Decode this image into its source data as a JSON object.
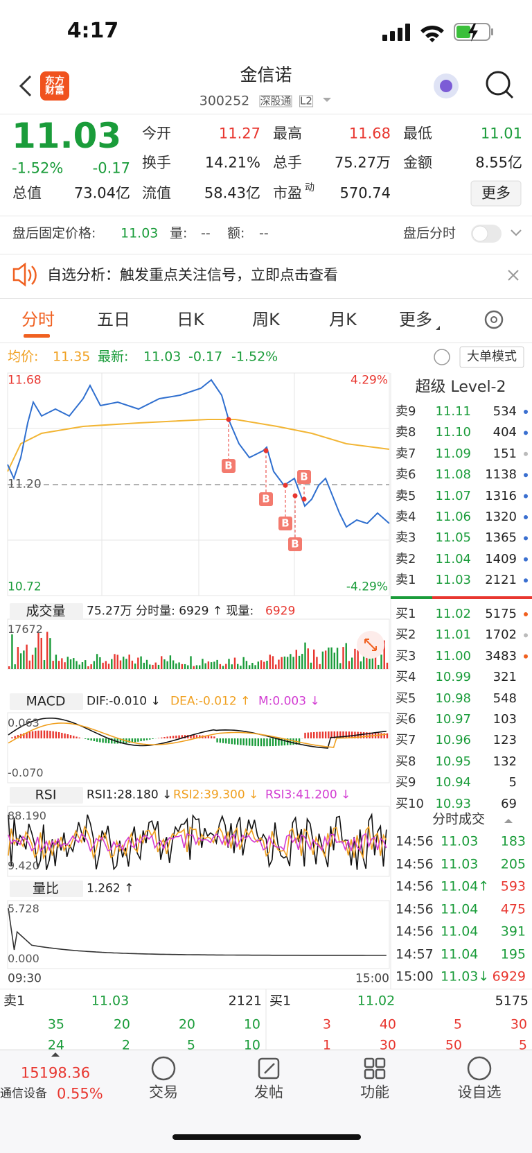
{
  "status": {
    "time": "4:17"
  },
  "header": {
    "logo": "东方财富",
    "title": "金信诺",
    "code": "300252",
    "tags": [
      "深股通",
      "L2"
    ]
  },
  "quote": {
    "price": "11.03",
    "pct": "-1.52%",
    "chg": "-0.17",
    "fields": [
      {
        "label": "今开",
        "value": "11.27"
      },
      {
        "label": "最高",
        "value": "11.68"
      },
      {
        "label": "最低",
        "value": "11.01"
      },
      {
        "label": "换手",
        "value": "14.21%"
      },
      {
        "label": "总手",
        "value": "75.27万"
      },
      {
        "label": "金额",
        "value": "8.55亿"
      },
      {
        "label": "总值",
        "value": "73.04亿"
      },
      {
        "label": "流值",
        "value": "58.43亿"
      },
      {
        "label": "市盈",
        "sup": "动",
        "value": "570.74"
      }
    ],
    "more": "更多"
  },
  "afterhours": {
    "label": "盘后固定价格:",
    "price": "11.03",
    "vol_label": "量:",
    "vol": "--",
    "amt_label": "额:",
    "amt": "--",
    "toggle": "盘后分时"
  },
  "notice": "自选分析：触发重点关注信号，立即点击查看",
  "tabs": [
    "分时",
    "五日",
    "日K",
    "周K",
    "月K",
    "更多"
  ],
  "infobar": {
    "avg_label": "均价:",
    "avg": "11.35",
    "latest_label": "最新:",
    "latest": "11.03",
    "chg": "-0.17",
    "pct": "-1.52%",
    "mode": "大单模式"
  },
  "price_chart": {
    "high": "11.68",
    "high_pct": "4.29%",
    "mid": "11.20",
    "low": "10.72",
    "low_pct": "-4.29%",
    "markers": [
      "B",
      "B",
      "B",
      "B",
      "B"
    ]
  },
  "volume": {
    "title": "成交量",
    "info": "75.27万 分时量: 6929 ↑ 现量:",
    "now": "6929",
    "max": "17672"
  },
  "macd": {
    "title": "MACD",
    "dif": "DIF:-0.010 ↓",
    "dea": "DEA:-0.012 ↑",
    "m": "M:0.003 ↓",
    "max": "0.063",
    "min": "-0.070"
  },
  "rsi": {
    "title": "RSI",
    "rsi1": "RSI1:28.180 ↓",
    "rsi2": "RSI2:39.300 ↓",
    "rsi3": "RSI3:41.200 ↓",
    "max": "88.190",
    "min": "9.420"
  },
  "ratio": {
    "title": "量比",
    "value": "1.262 ↑",
    "max": "5.728",
    "min": "0.000",
    "start": "09:30",
    "end": "15:00"
  },
  "book": {
    "title": "超级 Level-2",
    "asks": [
      [
        "卖9",
        "11.11",
        "534"
      ],
      [
        "卖8",
        "11.10",
        "404"
      ],
      [
        "卖7",
        "11.09",
        "151"
      ],
      [
        "卖6",
        "11.08",
        "1138"
      ],
      [
        "卖5",
        "11.07",
        "1316"
      ],
      [
        "卖4",
        "11.06",
        "1320"
      ],
      [
        "卖3",
        "11.05",
        "1365"
      ],
      [
        "卖2",
        "11.04",
        "1409"
      ],
      [
        "卖1",
        "11.03",
        "2121"
      ]
    ],
    "bids": [
      [
        "买1",
        "11.02",
        "5175"
      ],
      [
        "买2",
        "11.01",
        "1702"
      ],
      [
        "买3",
        "11.00",
        "3483"
      ],
      [
        "买4",
        "10.99",
        "321"
      ],
      [
        "买5",
        "10.98",
        "548"
      ],
      [
        "买6",
        "10.97",
        "103"
      ],
      [
        "买7",
        "10.96",
        "123"
      ],
      [
        "买8",
        "10.95",
        "132"
      ],
      [
        "买9",
        "10.94",
        "5"
      ],
      [
        "买10",
        "10.93",
        "69"
      ]
    ]
  },
  "trades": {
    "title": "分时成交",
    "rows": [
      [
        "14:56",
        "11.03",
        "183"
      ],
      [
        "14:56",
        "11.03",
        "205"
      ],
      [
        "14:56",
        "11.04↑",
        "593"
      ],
      [
        "14:56",
        "11.04",
        "475"
      ],
      [
        "14:56",
        "11.04",
        "391"
      ],
      [
        "14:57",
        "11.04",
        "195"
      ],
      [
        "15:00",
        "11.03↓",
        "6929"
      ]
    ]
  },
  "bottom_book": {
    "ask": [
      "卖1",
      "11.03",
      "2121"
    ],
    "bid": [
      "买1",
      "11.02",
      "5175"
    ],
    "ask_rows": [
      [
        "35",
        "20",
        "20",
        "10"
      ],
      [
        "24",
        "2",
        "5",
        "10"
      ]
    ],
    "bid_rows": [
      [
        "3",
        "40",
        "5",
        "30"
      ],
      [
        "1",
        "30",
        "50",
        "5"
      ]
    ]
  },
  "nav": {
    "index": "15198.36",
    "sector": "通信设备",
    "pct": "0.55%",
    "items": [
      "交易",
      "发帖",
      "功能",
      "设自选"
    ]
  }
}
